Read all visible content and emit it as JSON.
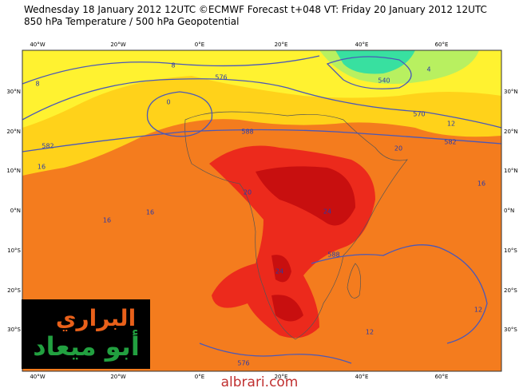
{
  "header": {
    "line1": "Wednesday 18 January 2012 12UTC ©ECMWF Forecast t+048 VT: Friday 20 January 2012 12UTC",
    "line2": "850 hPa Temperature / 500 hPa Geopotential"
  },
  "map": {
    "lon_labels": [
      "40°W",
      "20°W",
      "0°E",
      "20°E",
      "40°E",
      "60°E"
    ],
    "lat_labels": [
      "30°N",
      "20°N",
      "10°N",
      "0°N",
      "10°S",
      "20°S",
      "30°S"
    ],
    "contour_labels": [
      "8",
      "576",
      "0",
      "8",
      "582",
      "16",
      "588",
      "16",
      "16",
      "20",
      "24",
      "20",
      "570",
      "12",
      "582",
      "540",
      "4",
      "16",
      "24",
      "588",
      "12",
      "12",
      "576"
    ]
  },
  "logo": {
    "line1": "البراري",
    "line2": "أبو ميعاد"
  },
  "footer": {
    "site": "albrari.com"
  }
}
